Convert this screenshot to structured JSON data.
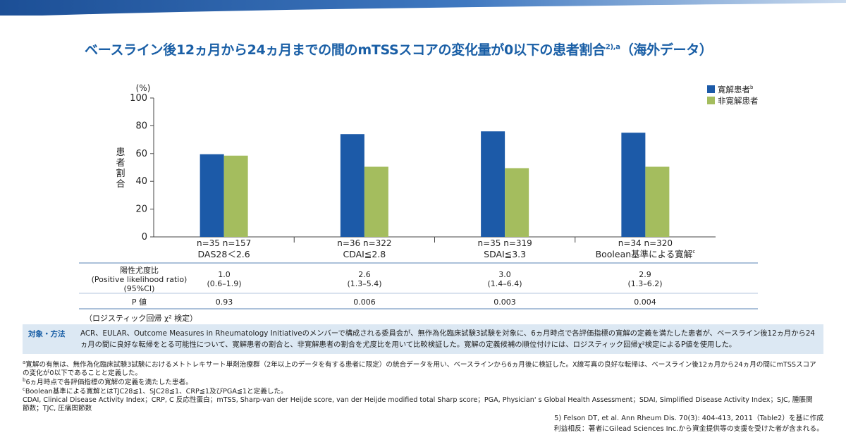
{
  "title": {
    "main": "ベースライン後12ヵ月から24ヵ月までの間のmTSSスコアの変化量が0以下の患者割合",
    "sup": "2),a",
    "suffix": "（海外データ）"
  },
  "chart_data": {
    "type": "bar",
    "ylabel": "患者割合",
    "yunit": "(%)",
    "ylim": [
      0,
      100
    ],
    "yticks": [
      "0",
      "20",
      "40",
      "60",
      "80",
      "100"
    ],
    "grid": false,
    "legend_position": "top-right",
    "categories": [
      "DAS28＜2.6",
      "CDAI≦2.8",
      "SDAI≦3.3",
      "Boolean基準による寛解"
    ],
    "category_sup": [
      "",
      "",
      "",
      "c"
    ],
    "n_labels": [
      "n=35 n=157",
      "n=36 n=322",
      "n=35 n=319",
      "n=34 n=320"
    ],
    "series": [
      {
        "name": "寛解患者",
        "name_sup": "b",
        "color": "#1c5aa8",
        "values": [
          59.5,
          74,
          76,
          75
        ]
      },
      {
        "name": "非寛解患者",
        "name_sup": "",
        "color": "#a4bd5e",
        "values": [
          58.5,
          50.5,
          49.5,
          50.5
        ]
      }
    ]
  },
  "ratio_table": {
    "label_lines": [
      "陽性尤度比",
      "(Positive likelihood ratio)",
      "(95%CI)"
    ],
    "values": [
      "1.0",
      "2.6",
      "3.0",
      "2.9"
    ],
    "ci": [
      "(0.6–1.9)",
      "(1.3–5.4)",
      "(1.4–6.4)",
      "(1.3–6.2)"
    ],
    "p_label": "P 値",
    "p_values": [
      "0.93",
      "0.006",
      "0.003",
      "0.004"
    ],
    "test_note": "（ロジスティック回帰 χ² 検定）"
  },
  "method": {
    "heading": "対象・方法",
    "text": "ACR、EULAR、Outcome Measures in Rheumatology Initiativeのメンバーで構成される委員会が、無作為化臨床試験3試験を対象に、6ヵ月時点で各評価指標の寛解の定義を満たした患者が、ベースライン後12ヵ月から24ヵ月の間に良好な転帰をとる可能性について、寛解患者の割合と、非寛解患者の割合を尤度比を用いて比較検証した。寛解の定義候補の順位付けには、ロジスティック回帰χ²検定によるP値を使用した。"
  },
  "footnotes": {
    "a_mark": "a",
    "a": "寛解の有無は、無作為化臨床試験3試験におけるメトトレキサート単剤治療群（2年以上のデータを有する患者に限定）の統合データを用い、ベースラインから6ヵ月後に検証した。X線写真の良好な転帰は、ベースライン後12ヵ月から24ヵ月の間にmTSSスコアの変化が0以下であることと定義した。",
    "b_mark": "b",
    "b": "6ヵ月時点で各評価指標の寛解の定義を満たした患者。",
    "c_mark": "c",
    "c": "Boolean基準による寛解とはTJC28≦1、SJC28≦1、CRP≦1及びPGA≦1と定義した。",
    "abbrev": "CDAI, Clinical Disease Activity Index；CRP, C 反応性蛋白；mTSS, Sharp-van der Heijde score, van der Heijde modified total Sharp score；PGA, Physician' s Global Health Assessment；SDAI, Simplified Disease Activity Index；SJC, 腫脹関節数；TJC, 圧痛関節数"
  },
  "citation": {
    "ref": "5) Felson DT, et al. Ann Rheum Dis. 70(3): 404-413, 2011（Table2）を基に作成",
    "coi": "利益相反：著者にGilead Sciences Inc.から資金提供等の支援を受けた者が含まれる。"
  }
}
